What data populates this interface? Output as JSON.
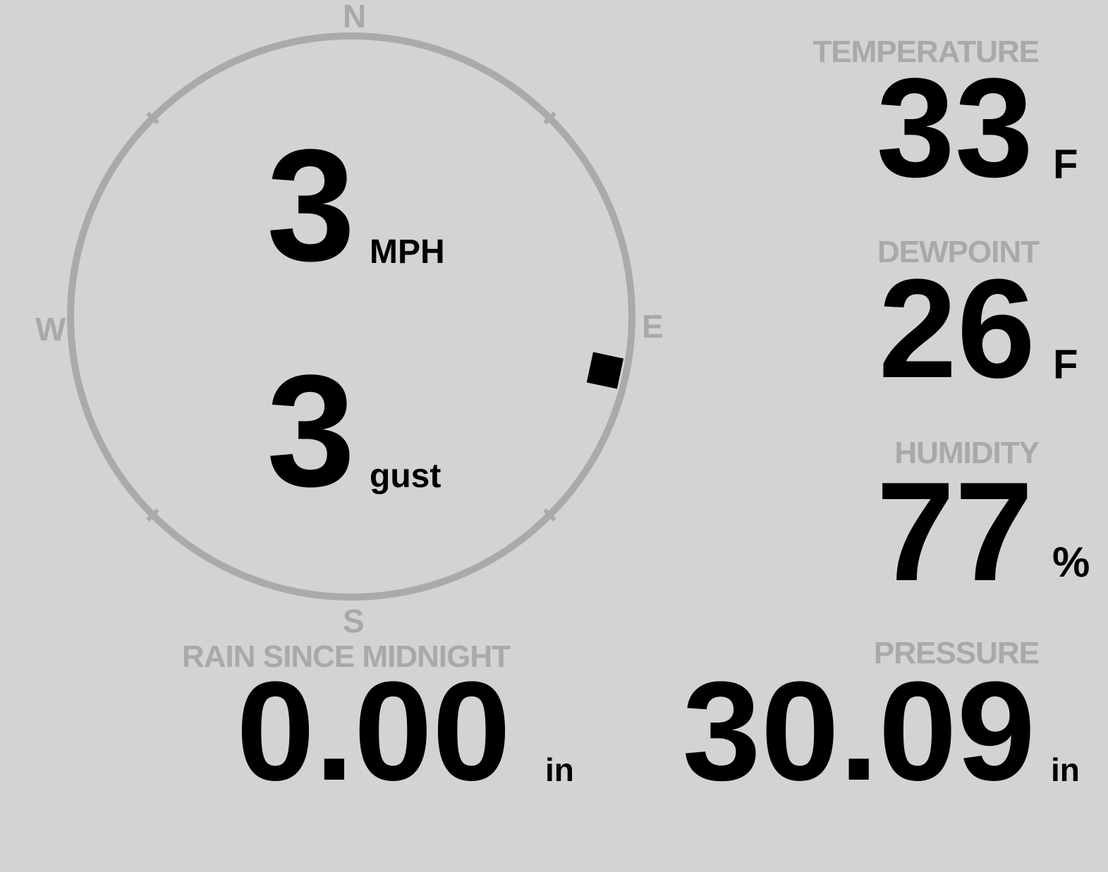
{
  "wind": {
    "speed": "3",
    "speed_unit": "MPH",
    "gust": "3",
    "gust_unit": "gust",
    "direction_degrees": 102,
    "compass": {
      "n": "N",
      "e": "E",
      "s": "S",
      "w": "W"
    }
  },
  "temperature": {
    "label": "TEMPERATURE",
    "value": "33",
    "unit": "F"
  },
  "dewpoint": {
    "label": "DEWPOINT",
    "value": "26",
    "unit": "F"
  },
  "humidity": {
    "label": "HUMIDITY",
    "value": "77",
    "unit": "%"
  },
  "rain": {
    "label": "RAIN SINCE MIDNIGHT",
    "value": "0.00",
    "unit": "in"
  },
  "pressure": {
    "label": "PRESSURE",
    "value": "30.09",
    "unit": "in"
  },
  "colors": {
    "background": "#d3d3d3",
    "label": "#a9a9a9",
    "value": "#000000",
    "ring": "#aaaaaa"
  }
}
